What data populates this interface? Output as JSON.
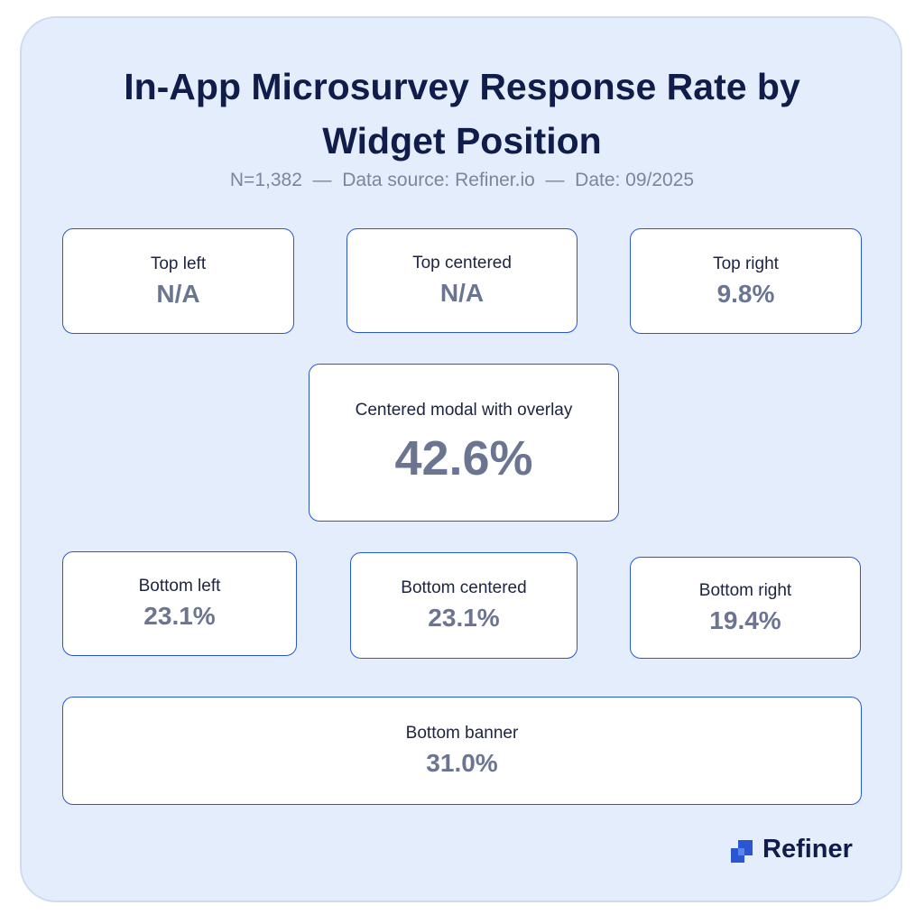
{
  "header": {
    "title": "In-App Microsurvey Response Rate by Widget Position",
    "subtitle": "N=1,382  —  Data source: Refiner.io  —  Date: 09/2025"
  },
  "positions": [
    {
      "label": "Top left",
      "value": "N/A"
    },
    {
      "label": "Top centered",
      "value": "N/A"
    },
    {
      "label": "Top right",
      "value": "9.8%"
    },
    {
      "label": "Centered modal with overlay",
      "value": "42.6%"
    },
    {
      "label": "Bottom left",
      "value": "23.1%"
    },
    {
      "label": "Bottom centered",
      "value": "23.1%"
    },
    {
      "label": "Bottom right",
      "value": "19.4%"
    },
    {
      "label": "Bottom banner",
      "value": "31.0%"
    }
  ],
  "footer": {
    "brand": "Refiner"
  }
}
